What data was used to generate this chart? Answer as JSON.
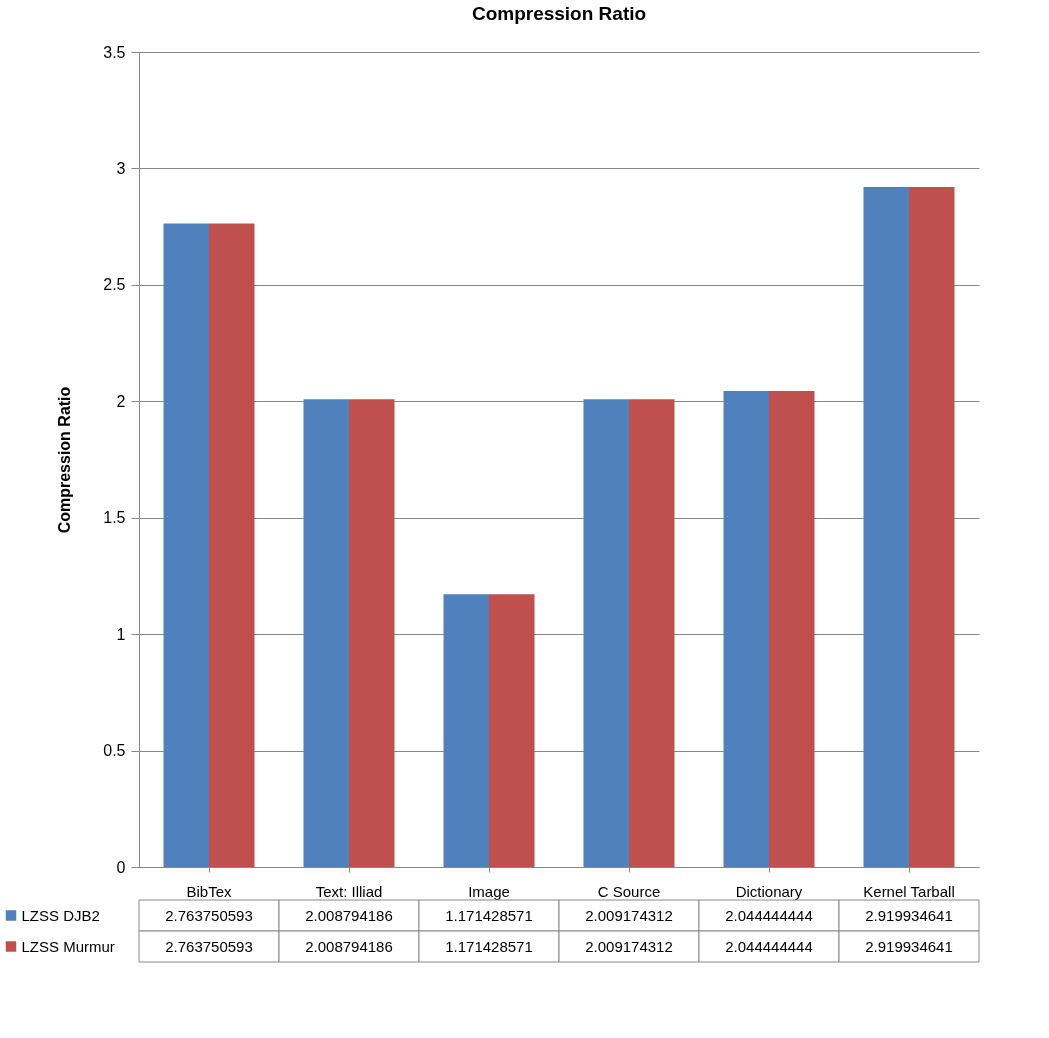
{
  "chart_data": {
    "type": "bar",
    "title": "Compression Ratio",
    "ylabel": "Compression Ratio",
    "categories": [
      "BibTex",
      "Text: Illiad",
      "Image",
      "C Source",
      "Dictionary",
      "Kernel Tarball"
    ],
    "series": [
      {
        "name": "LZSS DJB2",
        "color": "#4f81bd",
        "values": [
          2.763750593,
          2.008794186,
          1.171428571,
          2.009174312,
          2.044444444,
          2.919934641
        ]
      },
      {
        "name": "LZSS Murmur",
        "color": "#c0504d",
        "values": [
          2.763750593,
          2.008794186,
          1.171428571,
          2.009174312,
          2.044444444,
          2.919934641
        ]
      }
    ],
    "ylim": [
      0,
      3.5
    ],
    "yticks": [
      0,
      0.5,
      1,
      1.5,
      2,
      2.5,
      3,
      3.5
    ],
    "grid": "y",
    "data_labels": true,
    "legend": "bottom"
  }
}
